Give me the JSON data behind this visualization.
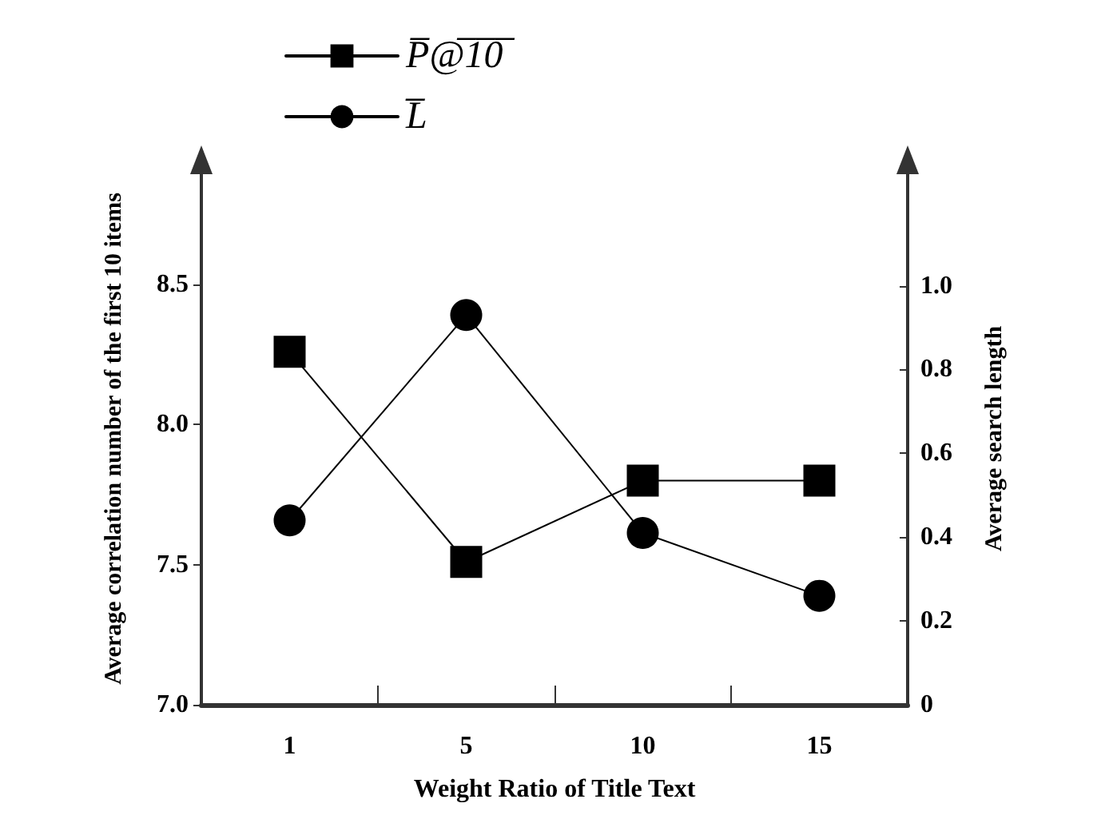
{
  "chart_data": {
    "type": "line",
    "xlabel": "Weight Ratio of Title Text",
    "ylabel": "Average correlation number of the first 10 items",
    "y2label": "Average search length",
    "categories": [
      "1",
      "5",
      "10",
      "15"
    ],
    "series": [
      {
        "name": "P̅@̅1̅0̅",
        "color": "#000000",
        "marker": "square",
        "values": [
          8.26,
          7.51,
          7.8,
          7.8
        ]
      },
      {
        "name": "L̅",
        "color": "#000000",
        "marker": "circle",
        "axis": "y2",
        "values": [
          0.44,
          0.93,
          0.41,
          0.26
        ]
      }
    ],
    "ylim": [
      7,
      8.9
    ],
    "yticks": [
      {
        "value": 7,
        "label": "7.0"
      },
      {
        "value": 7.5,
        "label": "7.5"
      },
      {
        "value": 8,
        "label": "8.0"
      },
      {
        "value": 8.5,
        "label": "8.5"
      }
    ],
    "y2lim": [
      0,
      1.27
    ],
    "y2ticks": [
      0,
      0.2,
      0.4,
      0.6,
      0.8,
      {
        "value": 1,
        "label": "1.0"
      }
    ],
    "grid": false,
    "legend": "top left",
    "line_style": "solid"
  }
}
